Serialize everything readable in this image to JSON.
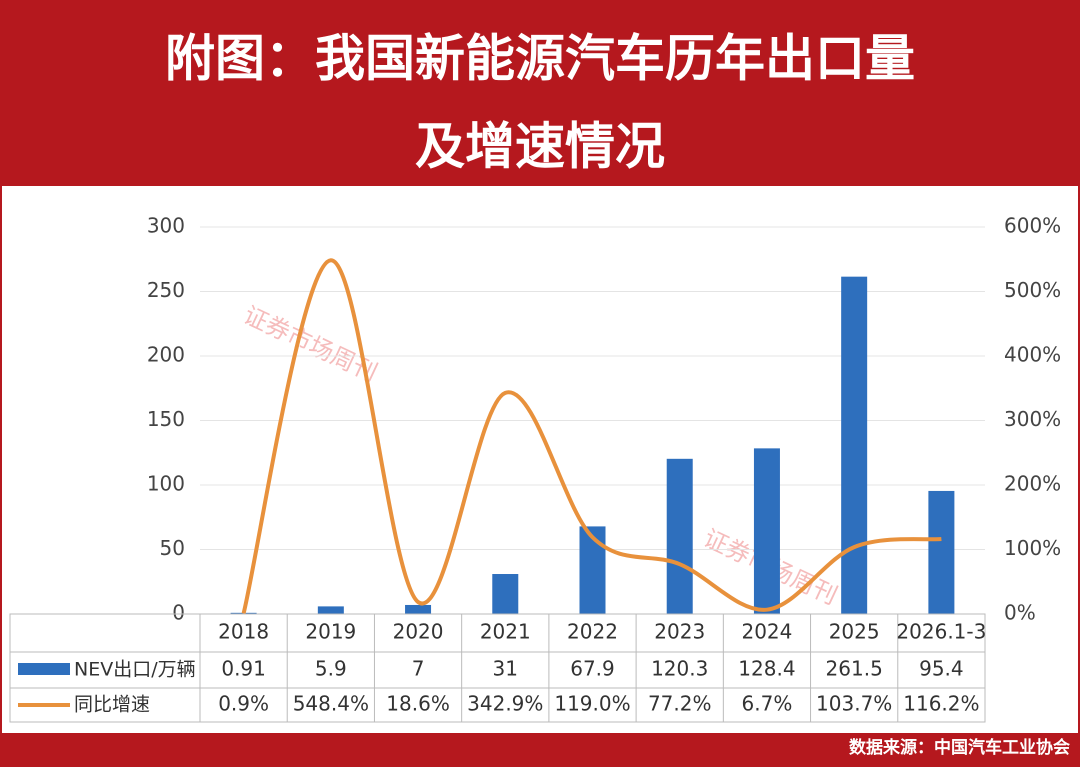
{
  "chart_data": {
    "type": "bar-line-table",
    "title": [
      "附图：我国新能源汽车历年出口量",
      "及增速情况"
    ],
    "watermark": "证券市场周刊",
    "source": "数据来源：中国汽车工业协会",
    "categories": [
      "2018",
      "2019",
      "2020",
      "2021",
      "2022",
      "2023",
      "2024",
      "2025",
      "2026.1-3"
    ],
    "series": [
      {
        "name": "NEV出口/万辆",
        "color": "#2e6fbd",
        "values": [
          0.91,
          5.9,
          7,
          31,
          67.9,
          120.3,
          128.4,
          261.5,
          95.4
        ]
      },
      {
        "name": "同比增速",
        "color": "#e8913c",
        "axis": "y2",
        "values": [
          0.9,
          548.4,
          18.6,
          342.9,
          119.0,
          77.2,
          6.7,
          103.7,
          116.2
        ],
        "value_labels": [
          "0.9%",
          "548.4%",
          "18.6%",
          "342.9%",
          "119.0%",
          "77.2%",
          "6.7%",
          "103.7%",
          "116.2%"
        ]
      }
    ],
    "ylim": [
      0,
      300
    ],
    "yticks": [
      0,
      50,
      100,
      150,
      200,
      250,
      300
    ],
    "y2lim": [
      0,
      600
    ],
    "y2ticks": [
      {
        "value": 0,
        "label": "0%"
      },
      {
        "value": 100,
        "label": "100%"
      },
      {
        "value": 200,
        "label": "200%"
      },
      {
        "value": 300,
        "label": "300%"
      },
      {
        "value": 400,
        "label": "400%"
      },
      {
        "value": 500,
        "label": "500%"
      },
      {
        "value": 600,
        "label": "600%"
      }
    ]
  }
}
